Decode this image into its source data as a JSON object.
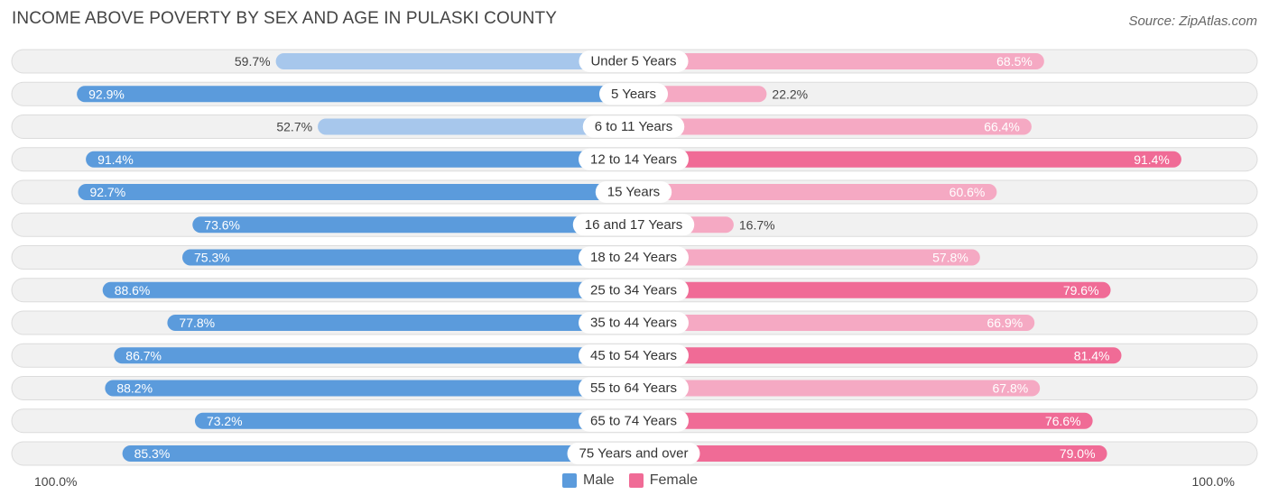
{
  "title": "INCOME ABOVE POVERTY BY SEX AND AGE IN PULASKI COUNTY",
  "source": "Source: ZipAtlas.com",
  "axis": {
    "left_label": "100.0%",
    "right_label": "100.0%"
  },
  "legend": {
    "male": "Male",
    "female": "Female"
  },
  "colors": {
    "male_strong": "#5b9bdc",
    "male_light": "#a7c7ec",
    "female_strong": "#f06b96",
    "female_light": "#f5a9c3",
    "track": "#f1f1f1",
    "track_border": "#dcdcdc"
  },
  "chart_data": {
    "type": "bar",
    "orientation": "horizontal-diverging",
    "title": "INCOME ABOVE POVERTY BY SEX AND AGE IN PULASKI COUNTY",
    "xlim": [
      0,
      100
    ],
    "categories": [
      "Under 5 Years",
      "5 Years",
      "6 to 11 Years",
      "12 to 14 Years",
      "15 Years",
      "16 and 17 Years",
      "18 to 24 Years",
      "25 to 34 Years",
      "35 to 44 Years",
      "45 to 54 Years",
      "55 to 64 Years",
      "65 to 74 Years",
      "75 Years and over"
    ],
    "series": [
      {
        "name": "Male",
        "values": [
          59.7,
          92.9,
          52.7,
          91.4,
          92.7,
          73.6,
          75.3,
          88.6,
          77.8,
          86.7,
          88.2,
          73.2,
          85.3
        ],
        "labels": [
          "59.7%",
          "92.9%",
          "52.7%",
          "91.4%",
          "92.7%",
          "73.6%",
          "75.3%",
          "88.6%",
          "77.8%",
          "86.7%",
          "88.2%",
          "73.2%",
          "85.3%"
        ]
      },
      {
        "name": "Female",
        "values": [
          68.5,
          22.2,
          66.4,
          91.4,
          60.6,
          16.7,
          57.8,
          79.6,
          66.9,
          81.4,
          67.8,
          76.6,
          79.0
        ],
        "labels": [
          "68.5%",
          "22.2%",
          "66.4%",
          "91.4%",
          "60.6%",
          "16.7%",
          "57.8%",
          "79.6%",
          "66.9%",
          "81.4%",
          "67.8%",
          "76.6%",
          "79.0%"
        ]
      }
    ]
  }
}
